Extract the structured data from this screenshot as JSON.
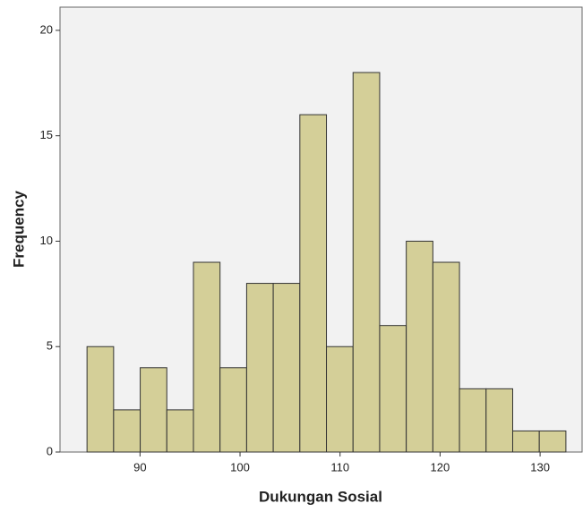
{
  "chart_data": {
    "type": "histogram",
    "x_label": "Dukungan Sosial",
    "y_label": "Frequency",
    "bins": [
      84.7,
      87.36,
      90.02,
      92.68,
      95.34,
      98.0,
      100.66,
      103.32,
      105.98,
      108.64,
      111.3,
      113.96,
      116.62,
      119.28,
      121.94,
      124.6,
      127.26,
      129.92,
      132.58
    ],
    "values": [
      5,
      2,
      4,
      2,
      9,
      4,
      8,
      8,
      16,
      5,
      18,
      6,
      10,
      9,
      3,
      3,
      1,
      1
    ],
    "color": "#d4cf98",
    "xlim": [
      82,
      134.2
    ],
    "xticks": [
      90,
      100,
      110,
      120,
      130
    ],
    "ylim": [
      0,
      21.1
    ],
    "yticks": [
      0,
      5,
      10,
      15,
      20
    ]
  }
}
